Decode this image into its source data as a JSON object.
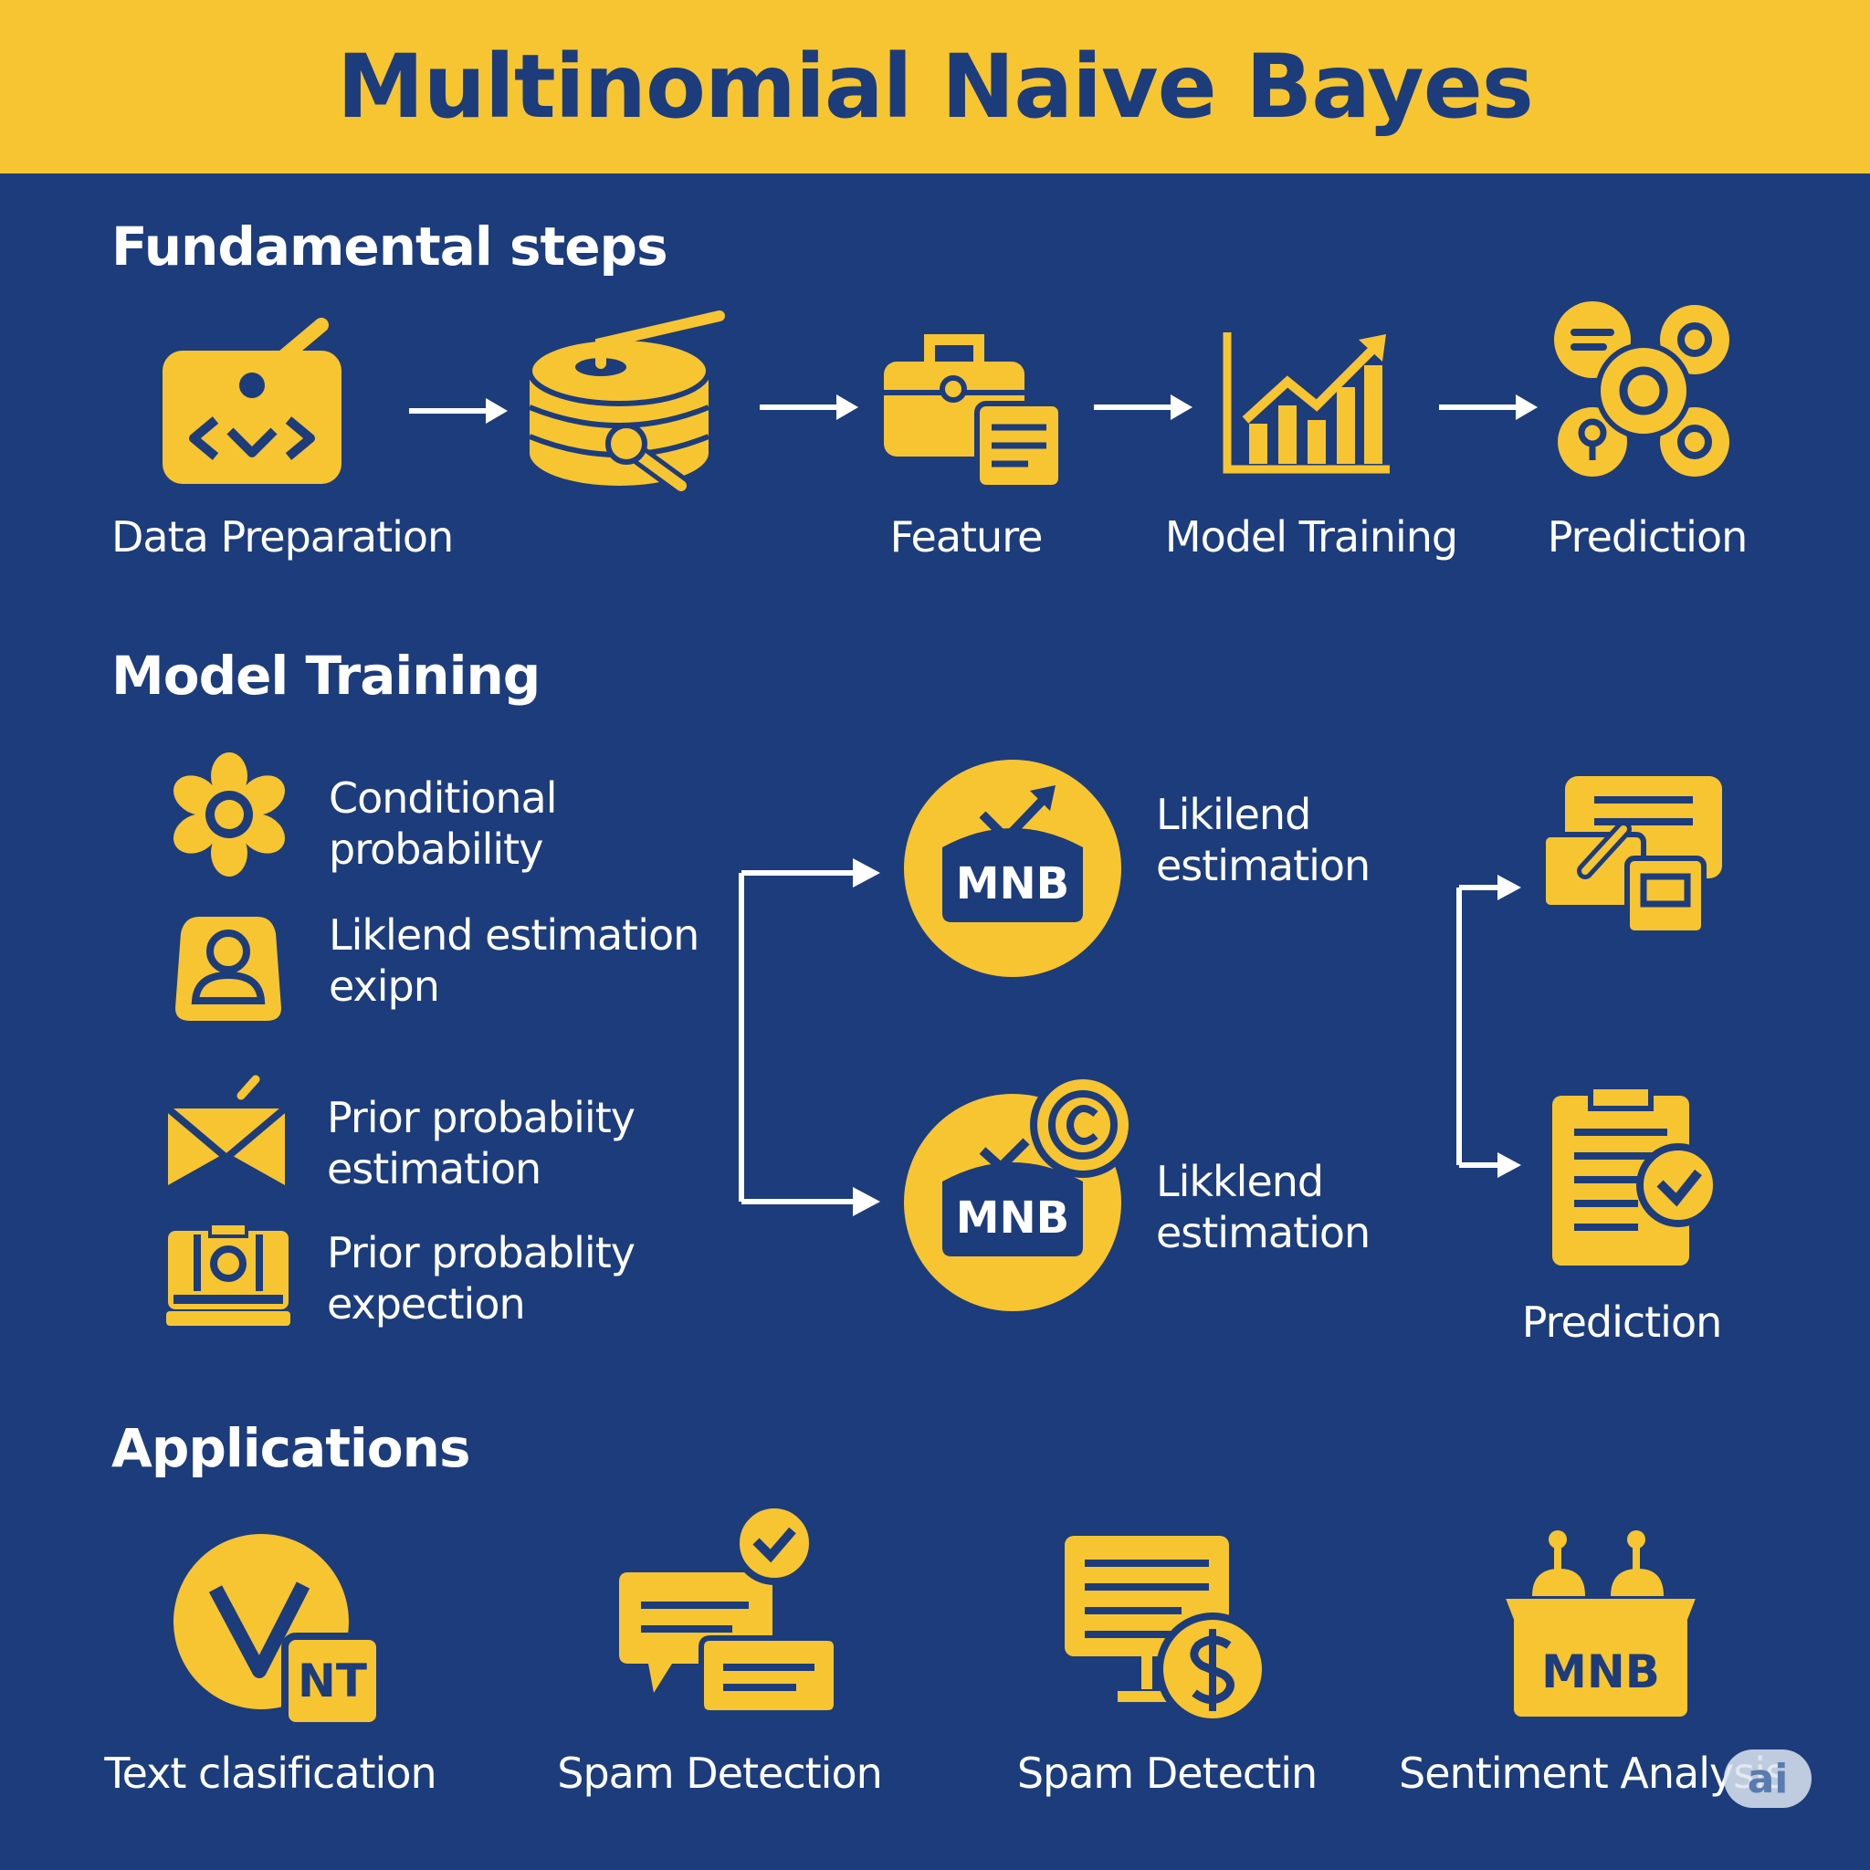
{
  "title": "Multinomial Naive Bayes",
  "sections": {
    "fundamental": {
      "title": "Fundamental steps",
      "steps": [
        {
          "label": "Data Preparation",
          "icon": "code-card-icon"
        },
        {
          "label": "",
          "icon": "database-probe-icon"
        },
        {
          "label": "Feature",
          "icon": "feature-toolbox-icon"
        },
        {
          "label": "Model Training",
          "icon": "bar-chart-trend-icon"
        },
        {
          "label": "Prediction",
          "icon": "network-gears-icon"
        }
      ]
    },
    "training": {
      "title": "Model Training",
      "items": [
        {
          "line1": "Conditional",
          "line2": "probability",
          "icon": "flower-gear-icon"
        },
        {
          "line1": "Liklend estimation",
          "line2": "exipn",
          "icon": "user-badge-icon"
        },
        {
          "line1": "Prior probabiity",
          "line2": "estimation",
          "icon": "envelope-icon"
        },
        {
          "line1": "Prior probablity",
          "line2": "expection",
          "icon": "camera-case-icon"
        }
      ],
      "mnb_nodes": [
        {
          "badge": "MNB",
          "line1": "Likilend",
          "line2": "estimation",
          "icon": "mnb-trend-circle-icon"
        },
        {
          "badge": "MNB",
          "line1": "Likklend",
          "line2": "estimation",
          "icon": "mnb-copyright-circle-icon"
        }
      ],
      "outputs": [
        {
          "label": "",
          "icon": "document-cards-icon"
        },
        {
          "label": "Prediction",
          "icon": "clipboard-check-icon"
        }
      ]
    },
    "applications": {
      "title": "Applications",
      "items": [
        {
          "label": "Text clasification",
          "badge": "NT",
          "icon": "check-circle-nt-icon"
        },
        {
          "label": "Spam Detection",
          "icon": "chat-bubbles-check-icon"
        },
        {
          "label": "Spam Detectin",
          "icon": "monitor-dollar-icon"
        },
        {
          "label": "Sentiment Analysis",
          "badge": "MNB",
          "icon": "mnb-box-icon"
        }
      ]
    }
  },
  "watermark": "ai",
  "colors": {
    "background": "#1d3c7c",
    "accent": "#f7c531",
    "text": "#ffffff"
  }
}
